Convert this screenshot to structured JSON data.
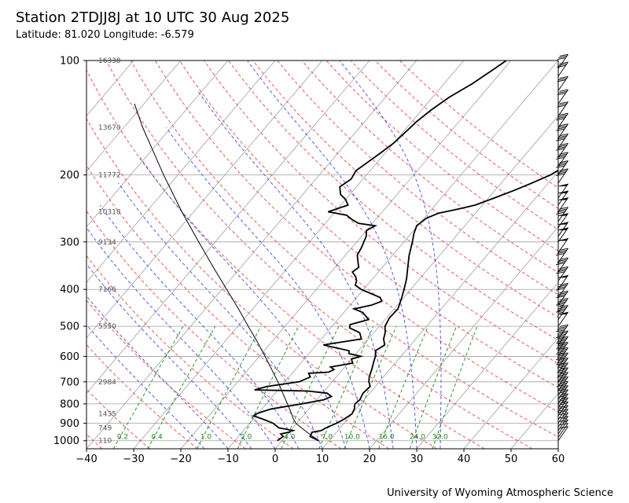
{
  "title": "Station 2TDJJ8J at 10 UTC 30 Aug 2025",
  "subtitle": "Latitude: 81.020 Longitude: -6.579",
  "credit": "University of Wyoming Atmospheric Science",
  "chart_data": {
    "type": "line",
    "diagram": "skew-T log-P",
    "x_axis": {
      "quantity": "temperature (°C)",
      "range": [
        -40,
        60
      ],
      "ticks": [
        -40,
        -30,
        -20,
        -10,
        0,
        10,
        20,
        30,
        40,
        50,
        60
      ]
    },
    "y_axis": {
      "quantity": "pressure (hPa)",
      "scale": "log",
      "range": [
        1050,
        100
      ],
      "ticks": [
        100,
        200,
        300,
        400,
        500,
        600,
        700,
        800,
        900,
        1000
      ]
    },
    "grid": true,
    "height_labels": [
      {
        "p": 100,
        "text": "16338"
      },
      {
        "p": 150,
        "text": "13670"
      },
      {
        "p": 200,
        "text": "11772"
      },
      {
        "p": 250,
        "text": "10318"
      },
      {
        "p": 300,
        "text": "9134"
      },
      {
        "p": 400,
        "text": "7166"
      },
      {
        "p": 500,
        "text": "5550"
      },
      {
        "p": 700,
        "text": "2984"
      },
      {
        "p": 850,
        "text": "1435"
      },
      {
        "p": 925,
        "text": "749"
      },
      {
        "p": 1000,
        "text": "110"
      }
    ],
    "mixing_ratio_labels": [
      "0.2",
      "0.4",
      "1.0",
      "2.0",
      "4.0",
      "7.0",
      "10.0",
      "16.0",
      "24.0",
      "32.0"
    ],
    "mixing_ratios": [
      0.2,
      0.4,
      1,
      2,
      4,
      7,
      10,
      16,
      24,
      32
    ],
    "dry_adiabats_theta_c": [
      -50,
      -40,
      -30,
      -20,
      -10,
      0,
      10,
      20,
      30,
      40,
      50,
      60,
      70,
      80,
      90,
      100,
      110,
      120,
      130,
      140,
      150,
      160,
      170
    ],
    "moist_adiabats_start_c": [
      -15,
      -10,
      -5,
      0,
      5,
      10,
      15,
      20,
      25,
      30,
      35
    ],
    "temperature": [
      [
        1000,
        7.8
      ],
      [
        975,
        5.2
      ],
      [
        960,
        5.0
      ],
      [
        950,
        4.8
      ],
      [
        940,
        6.5
      ],
      [
        925,
        7.0
      ],
      [
        900,
        8.4
      ],
      [
        880,
        9.2
      ],
      [
        850,
        10.0
      ],
      [
        825,
        9.6
      ],
      [
        800,
        8.8
      ],
      [
        780,
        9.1
      ],
      [
        750,
        8.6
      ],
      [
        720,
        8.9
      ],
      [
        700,
        7.8
      ],
      [
        680,
        7.0
      ],
      [
        650,
        6.2
      ],
      [
        620,
        5.2
      ],
      [
        600,
        4.6
      ],
      [
        580,
        3.6
      ],
      [
        560,
        4.5
      ],
      [
        540,
        3.2
      ],
      [
        520,
        2.4
      ],
      [
        500,
        1.2
      ],
      [
        475,
        0.6
      ],
      [
        450,
        0.8
      ],
      [
        425,
        -0.2
      ],
      [
        400,
        -1.4
      ],
      [
        375,
        -2.8
      ],
      [
        350,
        -4.6
      ],
      [
        325,
        -6.5
      ],
      [
        300,
        -8.2
      ],
      [
        285,
        -9.4
      ],
      [
        272,
        -10.2
      ],
      [
        260,
        -9.5
      ],
      [
        252,
        -7.8
      ],
      [
        246,
        -4.5
      ],
      [
        240,
        -1.5
      ],
      [
        230,
        1.2
      ],
      [
        220,
        4.0
      ],
      [
        210,
        6.5
      ],
      [
        200,
        9.0
      ],
      [
        190,
        10.5
      ],
      [
        180,
        13.0
      ],
      [
        170,
        16.5
      ],
      [
        160,
        19.0
      ],
      [
        150,
        21.5
      ],
      [
        140,
        25.0
      ],
      [
        130,
        27.5
      ],
      [
        120,
        29.5
      ],
      [
        110,
        32.5
      ],
      [
        105,
        34.5
      ],
      [
        100,
        35.0
      ]
    ],
    "dewpoint": [
      [
        1000,
        -1.0
      ],
      [
        975,
        -0.5
      ],
      [
        960,
        -1.5
      ],
      [
        950,
        -0.2
      ],
      [
        940,
        0.5
      ],
      [
        925,
        -3.0
      ],
      [
        900,
        -5.0
      ],
      [
        880,
        -7.6
      ],
      [
        860,
        -10.5
      ],
      [
        850,
        -10.3
      ],
      [
        840,
        -9.5
      ],
      [
        825,
        -8.0
      ],
      [
        800,
        -2.5
      ],
      [
        780,
        1.5
      ],
      [
        765,
        2.5
      ],
      [
        750,
        1.0
      ],
      [
        740,
        -3.5
      ],
      [
        735,
        -15.0
      ],
      [
        720,
        -13.0
      ],
      [
        700,
        -7.0
      ],
      [
        680,
        -5.5
      ],
      [
        665,
        -6.5
      ],
      [
        660,
        -2.5
      ],
      [
        650,
        -1.8
      ],
      [
        640,
        -3.0
      ],
      [
        625,
        1.0
      ],
      [
        610,
        0.0
      ],
      [
        600,
        1.5
      ],
      [
        590,
        -1.5
      ],
      [
        580,
        -2.0
      ],
      [
        560,
        -8.5
      ],
      [
        540,
        -1.5
      ],
      [
        520,
        -3.0
      ],
      [
        505,
        -6.0
      ],
      [
        495,
        -6.5
      ],
      [
        480,
        -3.5
      ],
      [
        460,
        -6.0
      ],
      [
        450,
        -8.5
      ],
      [
        440,
        -5.5
      ],
      [
        430,
        -4.0
      ],
      [
        420,
        -5.0
      ],
      [
        400,
        -10.5
      ],
      [
        390,
        -12.5
      ],
      [
        380,
        -13.0
      ],
      [
        370,
        -14.0
      ],
      [
        360,
        -15.5
      ],
      [
        350,
        -15.0
      ],
      [
        340,
        -16.0
      ],
      [
        325,
        -17.5
      ],
      [
        310,
        -18.0
      ],
      [
        300,
        -18.5
      ],
      [
        290,
        -19.0
      ],
      [
        280,
        -20.0
      ],
      [
        272,
        -19.0
      ],
      [
        268,
        -23.0
      ],
      [
        262,
        -25.0
      ],
      [
        255,
        -27.0
      ],
      [
        250,
        -31.5
      ],
      [
        240,
        -28.5
      ],
      [
        232,
        -30.0
      ],
      [
        225,
        -32.0
      ],
      [
        215,
        -33.5
      ],
      [
        205,
        -32.5
      ],
      [
        195,
        -33.0
      ],
      [
        185,
        -32.0
      ],
      [
        175,
        -31.0
      ],
      [
        165,
        -30.0
      ],
      [
        155,
        -29.5
      ],
      [
        145,
        -29.0
      ],
      [
        135,
        -28.0
      ],
      [
        125,
        -26.5
      ],
      [
        115,
        -24.0
      ],
      [
        105,
        -22.0
      ],
      [
        100,
        -21.0
      ]
    ],
    "parcel": [
      [
        1000,
        7.8
      ],
      [
        975,
        5.8
      ],
      [
        950,
        3.8
      ],
      [
        925,
        1.8
      ],
      [
        900,
        -0.2
      ],
      [
        875,
        -1.6
      ],
      [
        850,
        -2.8
      ],
      [
        800,
        -5.5
      ],
      [
        750,
        -8.4
      ],
      [
        700,
        -11.5
      ],
      [
        650,
        -15.0
      ],
      [
        600,
        -18.8
      ],
      [
        550,
        -23.0
      ],
      [
        500,
        -27.8
      ],
      [
        450,
        -33.0
      ],
      [
        400,
        -39.0
      ],
      [
        350,
        -45.8
      ],
      [
        300,
        -53.5
      ],
      [
        250,
        -62.5
      ],
      [
        200,
        -73.0
      ],
      [
        150,
        -86.0
      ],
      [
        130,
        -92.0
      ]
    ],
    "wind_barbs": [
      {
        "p": 1000,
        "speed_kt": 10
      },
      {
        "p": 980,
        "speed_kt": 10
      },
      {
        "p": 960,
        "speed_kt": 15
      },
      {
        "p": 940,
        "speed_kt": 15
      },
      {
        "p": 920,
        "speed_kt": 15
      },
      {
        "p": 900,
        "speed_kt": 20
      },
      {
        "p": 880,
        "speed_kt": 20
      },
      {
        "p": 860,
        "speed_kt": 20
      },
      {
        "p": 840,
        "speed_kt": 25
      },
      {
        "p": 820,
        "speed_kt": 25
      },
      {
        "p": 800,
        "speed_kt": 25
      },
      {
        "p": 780,
        "speed_kt": 30
      },
      {
        "p": 760,
        "speed_kt": 30
      },
      {
        "p": 740,
        "speed_kt": 30
      },
      {
        "p": 720,
        "speed_kt": 35
      },
      {
        "p": 700,
        "speed_kt": 35
      },
      {
        "p": 680,
        "speed_kt": 35
      },
      {
        "p": 660,
        "speed_kt": 40
      },
      {
        "p": 640,
        "speed_kt": 40
      },
      {
        "p": 620,
        "speed_kt": 40
      },
      {
        "p": 600,
        "speed_kt": 40
      },
      {
        "p": 580,
        "speed_kt": 45
      },
      {
        "p": 560,
        "speed_kt": 45
      },
      {
        "p": 540,
        "speed_kt": 45
      },
      {
        "p": 500,
        "speed_kt": 50
      },
      {
        "p": 480,
        "speed_kt": 45
      },
      {
        "p": 460,
        "speed_kt": 45
      },
      {
        "p": 440,
        "speed_kt": 40
      },
      {
        "p": 420,
        "speed_kt": 40
      },
      {
        "p": 400,
        "speed_kt": 50
      },
      {
        "p": 380,
        "speed_kt": 40
      },
      {
        "p": 360,
        "speed_kt": 40
      },
      {
        "p": 340,
        "speed_kt": 40
      },
      {
        "p": 320,
        "speed_kt": 50
      },
      {
        "p": 300,
        "speed_kt": 50
      },
      {
        "p": 290,
        "speed_kt": 50
      },
      {
        "p": 275,
        "speed_kt": 50
      },
      {
        "p": 265,
        "speed_kt": 40
      },
      {
        "p": 250,
        "speed_kt": 50
      },
      {
        "p": 240,
        "speed_kt": 50
      },
      {
        "p": 230,
        "speed_kt": 50
      },
      {
        "p": 210,
        "speed_kt": 40
      },
      {
        "p": 200,
        "speed_kt": 40
      },
      {
        "p": 190,
        "speed_kt": 40
      },
      {
        "p": 180,
        "speed_kt": 40
      },
      {
        "p": 170,
        "speed_kt": 40
      },
      {
        "p": 160,
        "speed_kt": 40
      },
      {
        "p": 150,
        "speed_kt": 40
      },
      {
        "p": 140,
        "speed_kt": 30
      },
      {
        "p": 130,
        "speed_kt": 30
      },
      {
        "p": 120,
        "speed_kt": 30
      },
      {
        "p": 110,
        "speed_kt": 30
      },
      {
        "p": 105,
        "speed_kt": 30
      }
    ],
    "colors": {
      "sounding": "#000000",
      "isotherm": "#a0a0a0",
      "dry_adiabat": "#e8474a",
      "moist_adiabat": "#4a4ae8",
      "mixing_ratio": "#1a8a1a",
      "height_label": "#555555"
    }
  }
}
